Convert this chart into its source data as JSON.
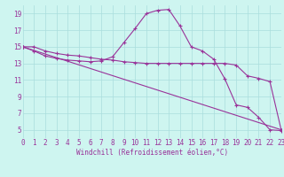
{
  "background_color": "#cef5f0",
  "grid_color": "#aadddd",
  "line_color": "#993399",
  "marker": "+",
  "xlabel": "Windchill (Refroidissement éolien,°C)",
  "xlim": [
    0,
    23
  ],
  "ylim": [
    4,
    20
  ],
  "yticks": [
    5,
    7,
    9,
    11,
    13,
    15,
    17,
    19
  ],
  "xticks": [
    0,
    1,
    2,
    3,
    4,
    5,
    6,
    7,
    8,
    9,
    10,
    11,
    12,
    13,
    14,
    15,
    16,
    17,
    18,
    19,
    20,
    21,
    22,
    23
  ],
  "line1_x": [
    0,
    1,
    2,
    3,
    4,
    5,
    6,
    7,
    8,
    9,
    10,
    11,
    12,
    13,
    14,
    15,
    16,
    17,
    18,
    19,
    20,
    21,
    22,
    23
  ],
  "line1_y": [
    15.0,
    15.0,
    14.5,
    14.2,
    14.0,
    13.9,
    13.7,
    13.5,
    13.4,
    13.2,
    13.1,
    13.0,
    13.0,
    13.0,
    13.0,
    13.0,
    13.0,
    13.0,
    13.0,
    12.8,
    11.5,
    11.2,
    10.8,
    5.0
  ],
  "line2_x": [
    0,
    1,
    2,
    3,
    4,
    5,
    6,
    7,
    8,
    9,
    10,
    11,
    12,
    13,
    14,
    15,
    16,
    17,
    18,
    19,
    20,
    21,
    22,
    23
  ],
  "line2_y": [
    15.0,
    14.5,
    13.9,
    13.6,
    13.4,
    13.3,
    13.2,
    13.3,
    13.8,
    15.5,
    17.2,
    19.0,
    19.4,
    19.5,
    17.5,
    15.0,
    14.5,
    13.5,
    11.1,
    8.0,
    7.7,
    6.5,
    5.0,
    4.9
  ],
  "line3_x": [
    0,
    23
  ],
  "line3_y": [
    15.0,
    5.0
  ]
}
